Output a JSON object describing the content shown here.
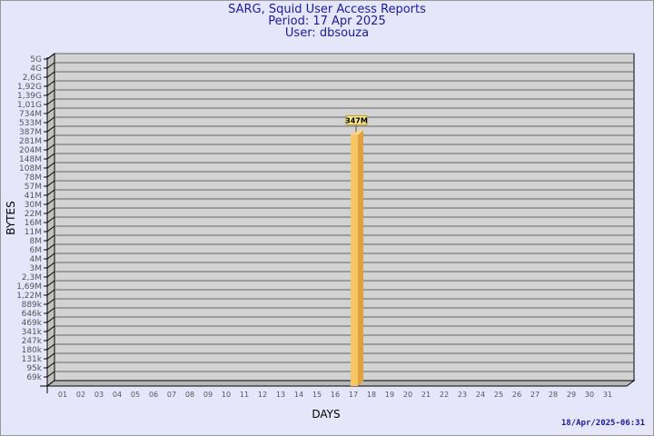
{
  "title_lines": [
    "SARG, Squid User Access Reports",
    "Period: 17 Apr 2025",
    "User: dbsouza"
  ],
  "footer": "18/Apr/2025-06:31",
  "colors": {
    "background": "#e6e6fa",
    "plot": "#d3d3d3",
    "bar": "#f6c565",
    "bar_side": "#e0a040",
    "title": "#1a1aa0"
  },
  "chart_data": {
    "type": "bar",
    "xlabel": "DAYS",
    "ylabel": "BYTES",
    "grid": true,
    "categories": [
      "01",
      "02",
      "03",
      "04",
      "05",
      "06",
      "07",
      "08",
      "09",
      "10",
      "11",
      "12",
      "13",
      "14",
      "15",
      "16",
      "17",
      "18",
      "19",
      "20",
      "21",
      "22",
      "23",
      "24",
      "25",
      "26",
      "27",
      "28",
      "29",
      "30",
      "31"
    ],
    "values": [
      0,
      0,
      0,
      0,
      0,
      0,
      0,
      0,
      0,
      0,
      0,
      0,
      0,
      0,
      0,
      0,
      347000000,
      0,
      0,
      0,
      0,
      0,
      0,
      0,
      0,
      0,
      0,
      0,
      0,
      0,
      0
    ],
    "data_labels": {
      "17": "347M"
    },
    "y_ticks": [
      {
        "label": "5G",
        "value": 5000000000
      },
      {
        "label": "4G",
        "value": 4000000000
      },
      {
        "label": "2,6G",
        "value": 2600000000
      },
      {
        "label": "1,92G",
        "value": 1920000000
      },
      {
        "label": "1,39G",
        "value": 1390000000
      },
      {
        "label": "1,01G",
        "value": 1010000000
      },
      {
        "label": "734M",
        "value": 734000000
      },
      {
        "label": "533M",
        "value": 533000000
      },
      {
        "label": "387M",
        "value": 387000000
      },
      {
        "label": "281M",
        "value": 281000000
      },
      {
        "label": "204M",
        "value": 204000000
      },
      {
        "label": "148M",
        "value": 148000000
      },
      {
        "label": "108M",
        "value": 108000000
      },
      {
        "label": "78M",
        "value": 78000000
      },
      {
        "label": "57M",
        "value": 57000000
      },
      {
        "label": "41M",
        "value": 41000000
      },
      {
        "label": "30M",
        "value": 30000000
      },
      {
        "label": "22M",
        "value": 22000000
      },
      {
        "label": "16M",
        "value": 16000000
      },
      {
        "label": "11M",
        "value": 11000000
      },
      {
        "label": "8M",
        "value": 8000000
      },
      {
        "label": "6M",
        "value": 6000000
      },
      {
        "label": "4M",
        "value": 4000000
      },
      {
        "label": "3M",
        "value": 3000000
      },
      {
        "label": "2,3M",
        "value": 2300000
      },
      {
        "label": "1,69M",
        "value": 1690000
      },
      {
        "label": "1,22M",
        "value": 1220000
      },
      {
        "label": "889k",
        "value": 889000
      },
      {
        "label": "646k",
        "value": 646000
      },
      {
        "label": "469k",
        "value": 469000
      },
      {
        "label": "341k",
        "value": 341000
      },
      {
        "label": "247k",
        "value": 247000
      },
      {
        "label": "180k",
        "value": 180000
      },
      {
        "label": "131k",
        "value": 131000
      },
      {
        "label": "95k",
        "value": 95000
      },
      {
        "label": "69k",
        "value": 69000
      }
    ]
  }
}
